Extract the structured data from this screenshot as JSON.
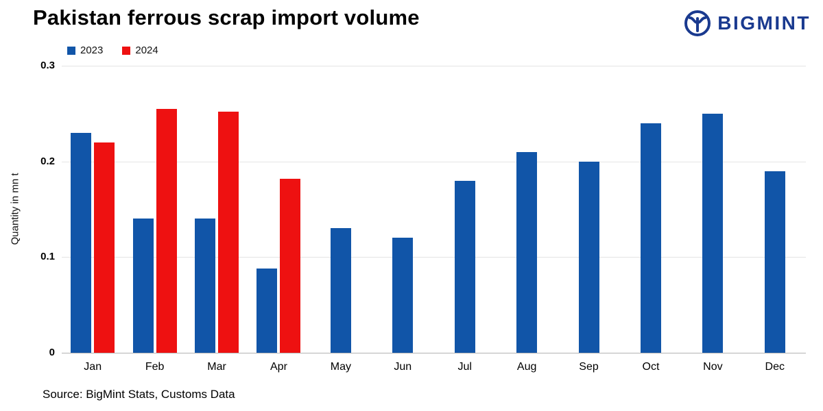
{
  "header": {
    "title": "Pakistan ferrous scrap import volume",
    "logo_text": "BIGMINT"
  },
  "legend": [
    {
      "label": "2023",
      "color": "#1155a8"
    },
    {
      "label": "2024",
      "color": "#ee1111"
    }
  ],
  "source": "Source: BigMint Stats, Customs Data",
  "colors": {
    "series_2023": "#1155a8",
    "series_2024": "#ee1111",
    "logo_blue": "#1a3a8f",
    "gridline": "#e4e4e4"
  },
  "chart_data": {
    "type": "bar",
    "title": "Pakistan ferrous scrap import volume",
    "categories": [
      "Jan",
      "Feb",
      "Mar",
      "Apr",
      "May",
      "Jun",
      "Jul",
      "Aug",
      "Sep",
      "Oct",
      "Nov",
      "Dec"
    ],
    "series": [
      {
        "name": "2023",
        "color": "#1155a8",
        "values": [
          0.23,
          0.14,
          0.14,
          0.088,
          0.13,
          0.12,
          0.18,
          0.21,
          0.2,
          0.24,
          0.25,
          0.19
        ]
      },
      {
        "name": "2024",
        "color": "#ee1111",
        "values": [
          0.22,
          0.255,
          0.252,
          0.182,
          null,
          null,
          null,
          null,
          null,
          null,
          null,
          null
        ]
      }
    ],
    "xlabel": "",
    "ylabel": "Quantity in mn t",
    "ylim": [
      0,
      0.3
    ],
    "yticks": [
      0,
      0.1,
      0.2,
      0.3
    ],
    "grid": true,
    "legend_position": "top-left"
  }
}
